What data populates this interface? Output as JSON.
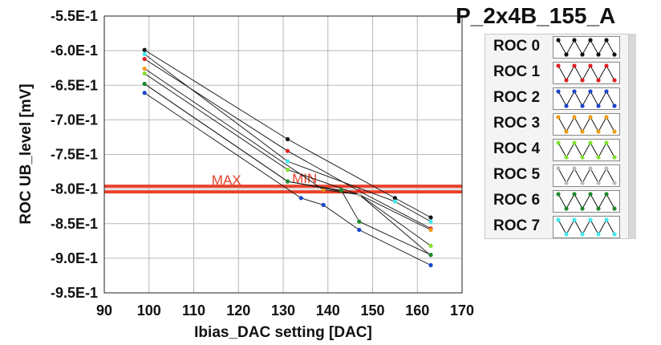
{
  "title": "P_2x4B_155_A",
  "chart_data": {
    "type": "line",
    "xlabel": "Ibias_DAC setting [DAC]",
    "ylabel": "ROC UB_level [mV]",
    "xlim": [
      90,
      170
    ],
    "ylim": [
      -0.95,
      -0.55
    ],
    "xticks": [
      "90",
      "100",
      "110",
      "120",
      "130",
      "140",
      "150",
      "160",
      "170"
    ],
    "yticks": [
      "-5.5E-1",
      "-6.0E-1",
      "-6.5E-1",
      "-7.0E-1",
      "-7.5E-1",
      "-8.0E-1",
      "-8.5E-1",
      "-9.0E-1",
      "-9.5E-1"
    ],
    "grid": true,
    "limits": [
      {
        "name": "MAX",
        "value": -0.796,
        "color": "#e8412b"
      },
      {
        "name": "MIN",
        "value": -0.804,
        "color": "#e8412b"
      }
    ],
    "series": [
      {
        "name": "ROC 0",
        "color": "#111111",
        "points": [
          [
            99,
            -0.599
          ],
          [
            131,
            -0.728
          ],
          [
            155,
            -0.813
          ],
          [
            163,
            -0.841
          ]
        ]
      },
      {
        "name": "ROC 1",
        "color": "#e02020",
        "points": [
          [
            99,
            -0.612
          ],
          [
            131,
            -0.745
          ],
          [
            147,
            -0.803
          ],
          [
            163,
            -0.857
          ]
        ]
      },
      {
        "name": "ROC 2",
        "color": "#1a46c8",
        "points": [
          [
            99,
            -0.661
          ],
          [
            134,
            -0.813
          ],
          [
            139,
            -0.823
          ],
          [
            147,
            -0.859
          ],
          [
            163,
            -0.91
          ]
        ]
      },
      {
        "name": "ROC 3",
        "color": "#f09a18",
        "points": [
          [
            99,
            -0.626
          ],
          [
            139,
            -0.801
          ],
          [
            147,
            -0.808
          ],
          [
            163,
            -0.859
          ]
        ]
      },
      {
        "name": "ROC 4",
        "color": "#80e030",
        "points": [
          [
            99,
            -0.633
          ],
          [
            131,
            -0.772
          ],
          [
            147,
            -0.808
          ],
          [
            163,
            -0.882
          ]
        ]
      },
      {
        "name": "ROC 5",
        "color": "#bbbbbb",
        "points": [
          [
            99,
            -0.648
          ],
          [
            131,
            -0.789
          ],
          [
            147,
            -0.808
          ],
          [
            163,
            -0.896
          ]
        ]
      },
      {
        "name": "ROC 6",
        "color": "#1e8a2a",
        "points": [
          [
            99,
            -0.648
          ],
          [
            131,
            -0.789
          ],
          [
            143,
            -0.802
          ],
          [
            147,
            -0.847
          ],
          [
            163,
            -0.895
          ]
        ]
      },
      {
        "name": "ROC 7",
        "color": "#40e8f0",
        "points": [
          [
            99,
            -0.605
          ],
          [
            131,
            -0.76
          ],
          [
            155,
            -0.818
          ],
          [
            163,
            -0.847
          ]
        ]
      }
    ]
  },
  "legend": [
    {
      "label": "ROC 0",
      "color": "#111111"
    },
    {
      "label": "ROC 1",
      "color": "#e02020"
    },
    {
      "label": "ROC 2",
      "color": "#1a46c8"
    },
    {
      "label": "ROC 3",
      "color": "#f09a18"
    },
    {
      "label": "ROC 4",
      "color": "#80e030"
    },
    {
      "label": "ROC 5",
      "color": "#bbbbbb"
    },
    {
      "label": "ROC 6",
      "color": "#1e8a2a"
    },
    {
      "label": "ROC 7",
      "color": "#40e8f0"
    }
  ]
}
